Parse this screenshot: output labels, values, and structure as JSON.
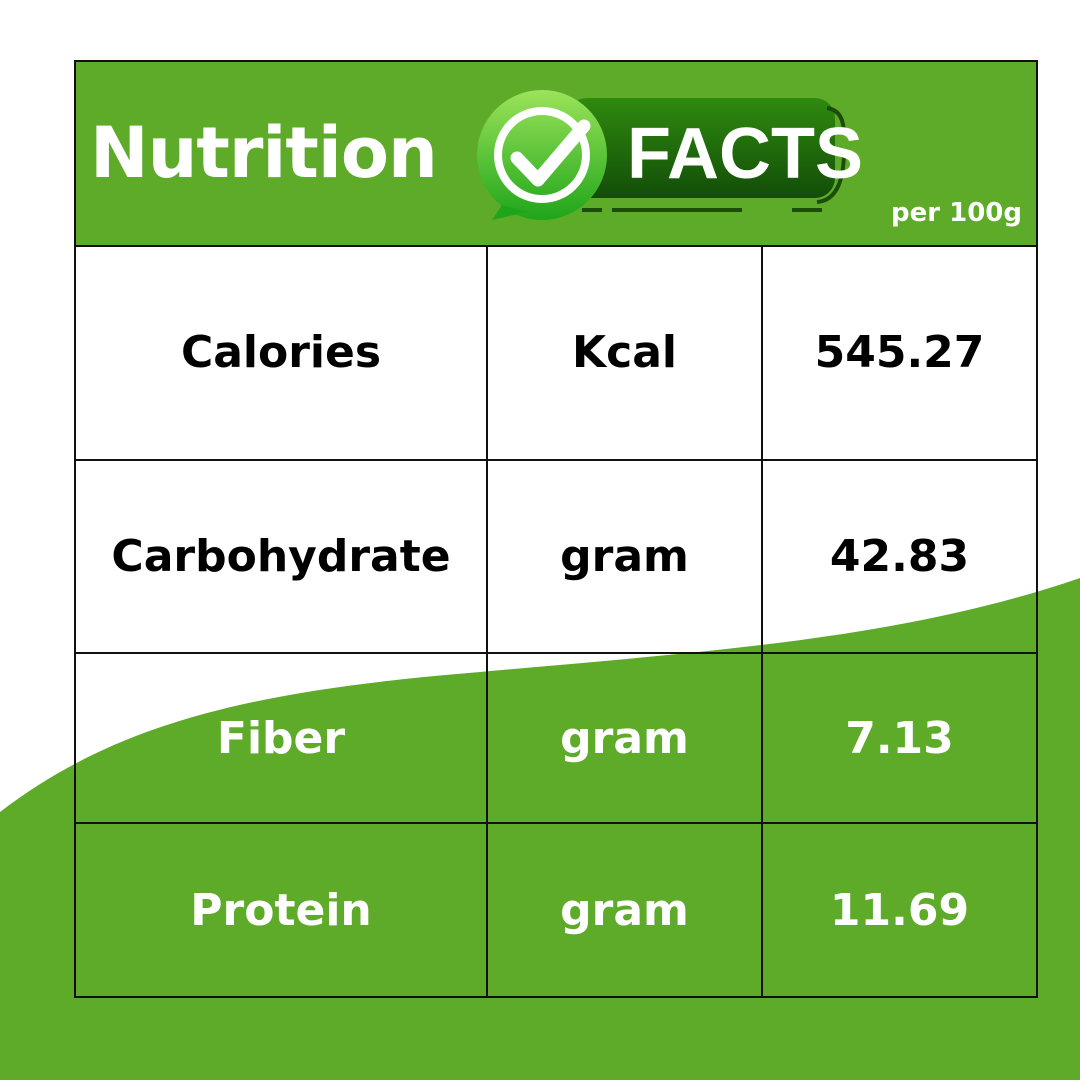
{
  "colors": {
    "brand_green": "#5eab2a",
    "dark_green": "#1f5e0e",
    "text_dark": "#000000",
    "text_light": "#ffffff"
  },
  "header": {
    "title": "Nutrition",
    "badge_text": "FACTS",
    "badge_icon": "check-circle-icon",
    "serving": "per 100g"
  },
  "rows": [
    {
      "name": "Calories",
      "unit": "Kcal",
      "value": "545.27"
    },
    {
      "name": "Carbohydrate",
      "unit": "gram",
      "value": "42.83"
    },
    {
      "name": "Fiber",
      "unit": "gram",
      "value": "7.13"
    },
    {
      "name": "Protein",
      "unit": "gram",
      "value": "11.69"
    }
  ]
}
